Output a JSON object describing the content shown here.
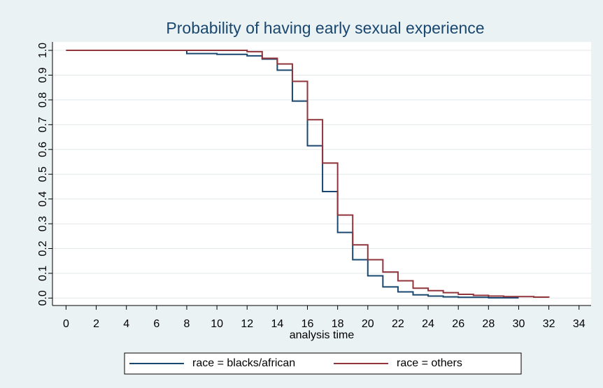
{
  "chart_data": {
    "type": "step",
    "title": "Probability of having early sexual experience",
    "x_label": "analysis time",
    "xlim": [
      -0.9,
      34.8
    ],
    "xticks": [
      0,
      2,
      4,
      6,
      8,
      10,
      12,
      14,
      16,
      18,
      20,
      22,
      24,
      26,
      28,
      30,
      32,
      34
    ],
    "ylim": [
      -0.03,
      1.034
    ],
    "yticks": [
      {
        "value": 0,
        "label": "0.0"
      },
      0.1,
      0.2,
      0.3,
      0.4,
      0.5,
      0.6,
      0.7,
      0.8,
      0.9,
      {
        "value": 1,
        "label": "1.0"
      }
    ],
    "grid": true,
    "legend": "bottom",
    "series": [
      {
        "name": "race = blacks/african",
        "color": "#1a476f",
        "x": [
          0,
          8,
          10,
          12,
          13,
          14,
          15,
          16,
          17,
          18,
          19,
          20,
          21,
          22,
          23,
          24,
          25,
          26,
          28,
          30
        ],
        "values": [
          1.0,
          0.987,
          0.984,
          0.978,
          0.965,
          0.92,
          0.795,
          0.615,
          0.43,
          0.265,
          0.155,
          0.09,
          0.045,
          0.025,
          0.013,
          0.008,
          0.005,
          0.003,
          0.001,
          0.001
        ]
      },
      {
        "name": "race = others",
        "color": "#90353b",
        "x": [
          0,
          12,
          13,
          14,
          15,
          16,
          17,
          18,
          19,
          20,
          21,
          22,
          23,
          24,
          25,
          26,
          27,
          28,
          29,
          31,
          32
        ],
        "values": [
          1.0,
          0.995,
          0.968,
          0.945,
          0.875,
          0.72,
          0.545,
          0.335,
          0.215,
          0.155,
          0.105,
          0.07,
          0.04,
          0.03,
          0.022,
          0.015,
          0.011,
          0.008,
          0.006,
          0.004,
          0.002
        ]
      }
    ]
  }
}
